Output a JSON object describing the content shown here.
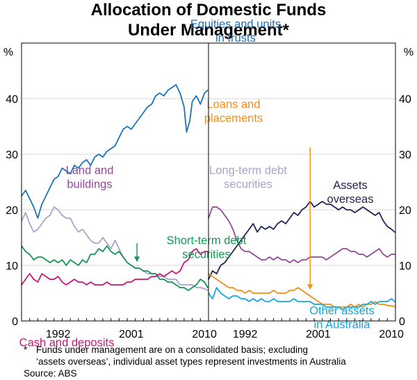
{
  "chart_data": {
    "type": "line",
    "title_line1": "Allocation of Domestic Funds",
    "title_line2": "Under Management*",
    "unit_left": "%",
    "unit_right": "%",
    "ylim": [
      0,
      50
    ],
    "yticks": [
      "0",
      "10",
      "20",
      "30",
      "40"
    ],
    "xlim": [
      1988,
      2011
    ],
    "xticks": [
      "1992",
      "2001",
      "2010"
    ],
    "grid": true,
    "panels": [
      {
        "series": [
          {
            "name": "Equities and units in trusts",
            "label_lines": [
              "Equities and units",
              "in trusts"
            ],
            "color": "#1a73b8",
            "x": [
              1988.0,
              1988.5,
              1989.0,
              1989.5,
              1990.0,
              1990.5,
              1991.0,
              1991.5,
              1992.0,
              1992.5,
              1993.0,
              1993.5,
              1994.0,
              1994.5,
              1995.0,
              1995.5,
              1996.0,
              1996.5,
              1997.0,
              1997.5,
              1998.0,
              1998.5,
              1999.0,
              1999.5,
              2000.0,
              2000.5,
              2001.0,
              2001.5,
              2002.0,
              2002.5,
              2003.0,
              2003.5,
              2004.0,
              2004.5,
              2005.0,
              2005.5,
              2006.0,
              2006.5,
              2007.0,
              2007.5,
              2008.0,
              2008.3,
              2008.7,
              2009.0,
              2009.5,
              2010.0,
              2010.5,
              2010.9
            ],
            "values": [
              22.5,
              23.5,
              22.0,
              20.5,
              18.5,
              21.0,
              22.5,
              24.0,
              25.5,
              26.0,
              27.5,
              27.0,
              26.5,
              28.0,
              27.5,
              28.5,
              29.0,
              28.0,
              29.5,
              30.0,
              29.5,
              30.5,
              31.0,
              31.5,
              33.0,
              34.5,
              35.0,
              34.5,
              35.5,
              36.5,
              37.5,
              38.5,
              39.0,
              40.5,
              41.0,
              40.5,
              41.5,
              42.0,
              42.5,
              41.0,
              38.5,
              34.0,
              36.0,
              39.5,
              40.5,
              39.0,
              41.0,
              41.5
            ]
          },
          {
            "name": "Long-term debt securities",
            "label_lines": [
              "Long-term debt",
              "securities"
            ],
            "color": "#a8a2cf",
            "x": [
              1988.0,
              1988.5,
              1989.0,
              1989.5,
              1990.0,
              1990.5,
              1991.0,
              1991.5,
              1992.0,
              1992.5,
              1993.0,
              1993.5,
              1994.0,
              1994.5,
              1995.0,
              1995.5,
              1996.0,
              1996.5,
              1997.0,
              1997.5,
              1998.0,
              1998.5,
              1999.0,
              1999.5,
              2000.0,
              2000.5,
              2001.0,
              2001.5,
              2002.0,
              2002.5,
              2003.0,
              2003.5,
              2004.0,
              2004.5,
              2005.0,
              2005.5,
              2006.0,
              2006.5,
              2007.0,
              2007.5,
              2008.0,
              2008.5,
              2009.0,
              2009.5,
              2010.0,
              2010.5,
              2010.9
            ],
            "values": [
              18.0,
              19.5,
              17.5,
              16.0,
              16.5,
              17.5,
              18.5,
              19.0,
              20.5,
              20.0,
              19.0,
              18.5,
              18.5,
              17.0,
              16.0,
              16.5,
              15.5,
              14.5,
              14.0,
              14.0,
              15.0,
              14.0,
              13.0,
              14.5,
              13.0,
              11.5,
              10.5,
              10.0,
              9.5,
              9.5,
              9.0,
              8.5,
              8.5,
              8.5,
              8.0,
              8.0,
              7.5,
              7.5,
              7.5,
              6.5,
              6.5,
              6.5,
              6.5,
              6.0,
              6.0,
              5.8,
              5.5
            ]
          },
          {
            "name": "Short-term debt securities",
            "label_lines": [
              "Short-term debt",
              "securities"
            ],
            "color": "#149653",
            "x": [
              1988.0,
              1988.5,
              1989.0,
              1989.5,
              1990.0,
              1990.5,
              1991.0,
              1991.5,
              1992.0,
              1992.5,
              1993.0,
              1993.5,
              1994.0,
              1994.5,
              1995.0,
              1995.5,
              1996.0,
              1996.5,
              1997.0,
              1997.5,
              1998.0,
              1998.5,
              1999.0,
              1999.5,
              2000.0,
              2000.5,
              2001.0,
              2001.5,
              2002.0,
              2002.5,
              2003.0,
              2003.5,
              2004.0,
              2004.5,
              2005.0,
              2005.5,
              2006.0,
              2006.5,
              2007.0,
              2007.5,
              2008.0,
              2008.5,
              2009.0,
              2009.5,
              2010.0,
              2010.5,
              2010.9
            ],
            "values": [
              13.5,
              12.5,
              12.0,
              11.0,
              11.5,
              11.5,
              11.0,
              10.5,
              11.0,
              10.5,
              11.0,
              10.0,
              11.0,
              10.5,
              10.0,
              11.0,
              10.5,
              12.0,
              12.0,
              13.0,
              12.5,
              13.5,
              12.5,
              12.0,
              12.5,
              11.5,
              10.5,
              10.0,
              9.5,
              9.5,
              9.0,
              9.0,
              8.5,
              8.5,
              7.5,
              7.5,
              7.0,
              7.0,
              6.5,
              6.0,
              6.0,
              5.5,
              6.0,
              6.5,
              7.5,
              7.0,
              6.0
            ]
          },
          {
            "name": "Cash and deposits",
            "label_lines": [
              "Cash and deposits"
            ],
            "color": "#c8167b",
            "x": [
              1988.0,
              1988.5,
              1989.0,
              1989.5,
              1990.0,
              1990.5,
              1991.0,
              1991.5,
              1992.0,
              1992.5,
              1993.0,
              1993.5,
              1994.0,
              1994.5,
              1995.0,
              1995.5,
              1996.0,
              1996.5,
              1997.0,
              1997.5,
              1998.0,
              1998.5,
              1999.0,
              1999.5,
              2000.0,
              2000.5,
              2001.0,
              2001.5,
              2002.0,
              2002.5,
              2003.0,
              2003.5,
              2004.0,
              2004.5,
              2005.0,
              2005.5,
              2006.0,
              2006.5,
              2007.0,
              2007.5,
              2008.0,
              2008.5,
              2009.0,
              2009.5,
              2010.0,
              2010.5,
              2010.9
            ],
            "values": [
              6.5,
              7.5,
              8.5,
              7.5,
              7.0,
              8.5,
              8.0,
              7.5,
              7.5,
              8.0,
              7.0,
              6.5,
              7.0,
              7.5,
              7.0,
              7.0,
              6.5,
              7.0,
              6.5,
              6.5,
              6.5,
              7.0,
              6.5,
              6.5,
              6.5,
              6.5,
              7.0,
              7.0,
              7.5,
              7.5,
              7.5,
              7.5,
              8.0,
              8.0,
              8.5,
              8.0,
              8.5,
              9.0,
              8.5,
              9.0,
              10.5,
              11.0,
              12.5,
              13.0,
              12.0,
              12.5,
              12.5
            ]
          }
        ],
        "annotation": {
          "text": "",
          "arrow_at": [
            2002.2,
            10.6
          ]
        }
      },
      {
        "series": [
          {
            "name": "Land and buildings",
            "label_lines": [
              "Land and",
              "buildings"
            ],
            "color": "#94479b",
            "x": [
              1988.0,
              1988.5,
              1989.0,
              1989.5,
              1990.0,
              1990.5,
              1991.0,
              1991.5,
              1992.0,
              1992.5,
              1993.0,
              1993.5,
              1994.0,
              1994.5,
              1995.0,
              1995.5,
              1996.0,
              1996.5,
              1997.0,
              1997.5,
              1998.0,
              1998.5,
              1999.0,
              1999.5,
              2000.0,
              2000.5,
              2001.0,
              2001.5,
              2002.0,
              2002.5,
              2003.0,
              2003.5,
              2004.0,
              2004.5,
              2005.0,
              2005.5,
              2006.0,
              2006.5,
              2007.0,
              2007.5,
              2008.0,
              2008.5,
              2009.0,
              2009.5,
              2010.0,
              2010.5,
              2010.9
            ],
            "values": [
              18.5,
              20.5,
              20.5,
              20.0,
              19.0,
              18.0,
              16.5,
              14.5,
              13.0,
              12.5,
              12.5,
              12.0,
              11.5,
              11.0,
              11.0,
              11.5,
              11.0,
              11.5,
              11.0,
              11.0,
              10.5,
              11.0,
              10.5,
              11.0,
              11.0,
              11.5,
              11.5,
              11.5,
              11.5,
              11.0,
              11.5,
              12.0,
              12.5,
              13.0,
              13.0,
              12.5,
              12.5,
              12.0,
              12.0,
              11.5,
              12.0,
              12.5,
              13.0,
              12.0,
              11.5,
              12.0,
              12.0
            ]
          },
          {
            "name": "Assets overseas",
            "label_lines": [
              "Assets",
              "overseas"
            ],
            "color": "#1e2353",
            "x": [
              1988.0,
              1988.5,
              1989.0,
              1989.5,
              1990.0,
              1990.5,
              1991.0,
              1991.5,
              1992.0,
              1992.5,
              1993.0,
              1993.5,
              1994.0,
              1994.5,
              1995.0,
              1995.5,
              1996.0,
              1996.5,
              1997.0,
              1997.5,
              1998.0,
              1998.5,
              1999.0,
              1999.5,
              2000.0,
              2000.5,
              2001.0,
              2001.5,
              2002.0,
              2002.5,
              2003.0,
              2003.5,
              2004.0,
              2004.5,
              2005.0,
              2005.5,
              2006.0,
              2006.5,
              2007.0,
              2007.5,
              2008.0,
              2008.5,
              2009.0,
              2009.5,
              2010.0,
              2010.5,
              2010.9
            ],
            "values": [
              7.5,
              9.0,
              8.5,
              10.0,
              10.5,
              11.5,
              12.5,
              13.5,
              14.5,
              15.5,
              16.5,
              17.5,
              16.0,
              17.0,
              16.5,
              17.0,
              16.5,
              17.5,
              18.0,
              17.5,
              18.5,
              19.5,
              19.0,
              20.0,
              20.5,
              21.5,
              20.5,
              21.0,
              21.5,
              21.0,
              21.0,
              20.5,
              20.0,
              20.5,
              20.0,
              20.0,
              19.5,
              20.0,
              20.5,
              20.0,
              19.5,
              19.0,
              19.5,
              18.0,
              17.0,
              16.5,
              16.0
            ]
          },
          {
            "name": "Loans and placements",
            "label_lines": [
              "Loans and",
              "placements"
            ],
            "color": "#f28e16",
            "x": [
              1988.0,
              1988.5,
              1989.0,
              1989.5,
              1990.0,
              1990.5,
              1991.0,
              1991.5,
              1992.0,
              1992.5,
              1993.0,
              1993.5,
              1994.0,
              1994.5,
              1995.0,
              1995.5,
              1996.0,
              1996.5,
              1997.0,
              1997.5,
              1998.0,
              1998.5,
              1999.0,
              1999.5,
              2000.0,
              2000.5,
              2001.0,
              2001.5,
              2002.0,
              2002.5,
              2003.0,
              2003.5,
              2004.0,
              2004.5,
              2005.0,
              2005.5,
              2006.0,
              2006.5,
              2007.0,
              2007.5,
              2008.0,
              2008.5,
              2009.0,
              2009.5,
              2010.0,
              2010.5,
              2010.9
            ],
            "values": [
              8.5,
              8.0,
              7.5,
              7.0,
              6.5,
              6.0,
              6.0,
              5.5,
              5.5,
              5.0,
              5.5,
              5.0,
              5.0,
              5.0,
              5.0,
              5.0,
              5.5,
              5.0,
              5.0,
              5.0,
              5.5,
              5.5,
              6.0,
              5.5,
              5.0,
              4.5,
              4.0,
              3.5,
              3.0,
              3.0,
              3.0,
              2.5,
              2.5,
              2.5,
              2.5,
              3.0,
              2.5,
              3.0,
              2.5,
              3.0,
              3.0,
              3.5,
              3.0,
              3.0,
              2.8,
              2.7,
              2.6
            ]
          },
          {
            "name": "Other assets in Australia",
            "label_lines": [
              "Other assets",
              "in Australia"
            ],
            "color": "#10a7e0",
            "x": [
              1988.0,
              1988.5,
              1989.0,
              1989.5,
              1990.0,
              1990.5,
              1991.0,
              1991.5,
              1992.0,
              1992.5,
              1993.0,
              1993.5,
              1994.0,
              1994.5,
              1995.0,
              1995.5,
              1996.0,
              1996.5,
              1997.0,
              1997.5,
              1998.0,
              1998.5,
              1999.0,
              1999.5,
              2000.0,
              2000.5,
              2001.0,
              2001.5,
              2002.0,
              2002.5,
              2003.0,
              2003.5,
              2004.0,
              2004.5,
              2005.0,
              2005.5,
              2006.0,
              2006.5,
              2007.0,
              2007.5,
              2008.0,
              2008.5,
              2009.0,
              2009.5,
              2010.0,
              2010.5,
              2010.9
            ],
            "values": [
              5.0,
              4.0,
              6.0,
              5.0,
              4.5,
              4.0,
              4.5,
              4.5,
              4.0,
              4.0,
              3.5,
              4.0,
              3.5,
              4.0,
              3.5,
              3.5,
              4.0,
              3.5,
              3.5,
              3.5,
              3.5,
              4.0,
              3.5,
              3.5,
              3.5,
              3.5,
              3.0,
              3.0,
              3.0,
              2.5,
              2.5,
              2.5,
              2.5,
              2.0,
              2.5,
              2.5,
              2.5,
              2.5,
              3.0,
              3.0,
              3.5,
              3.0,
              3.5,
              3.5,
              3.5,
              4.0,
              3.5
            ]
          }
        ],
        "annotation": {
          "text": "",
          "arrow_at": [
            2000.5,
            5.6
          ]
        }
      }
    ]
  },
  "footnote": {
    "marker": "*",
    "line1": "Funds under management are on a consolidated basis; excluding",
    "line2": "‘assets overseas’, individual asset types represent investments in Australia",
    "source": "Source: ABS"
  }
}
